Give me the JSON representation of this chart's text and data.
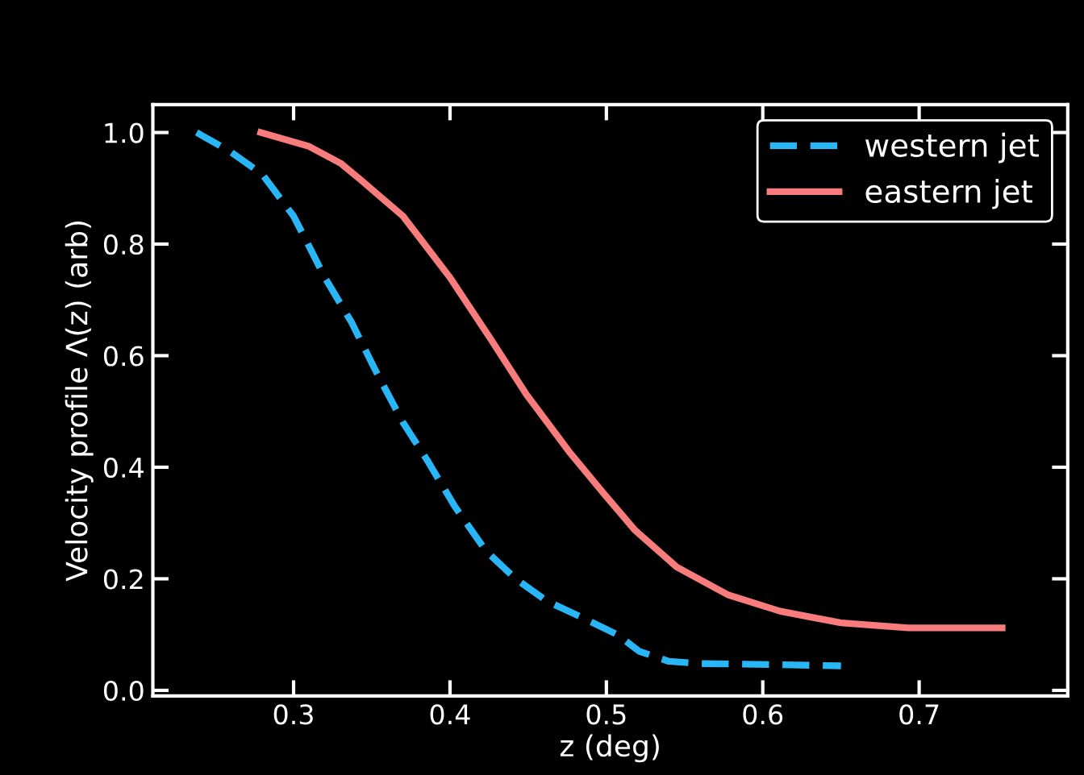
{
  "chart_data": {
    "type": "line",
    "xlabel": "z (deg)",
    "ylabel": "Velocity profile Λ(z) (arb)",
    "xlim": [
      0.21,
      0.795
    ],
    "ylim": [
      -0.01,
      1.05
    ],
    "xticks": [
      0.3,
      0.4,
      0.5,
      0.6,
      0.7
    ],
    "yticks": [
      {
        "value": 0,
        "label": "0.0"
      },
      0.2,
      0.4,
      0.6,
      0.8,
      {
        "value": 1,
        "label": "1.0"
      }
    ],
    "grid": false,
    "legend": "top right",
    "series": [
      {
        "name": "western jet",
        "color": "#29b6f6",
        "line_style": "dashed",
        "x": [
          0.238,
          0.26,
          0.28,
          0.3,
          0.311,
          0.32,
          0.337,
          0.353,
          0.37,
          0.386,
          0.403,
          0.423,
          0.442,
          0.462,
          0.485,
          0.507,
          0.521,
          0.54,
          0.561,
          0.611,
          0.65
        ],
        "values": [
          1.0,
          0.965,
          0.925,
          0.85,
          0.79,
          0.74,
          0.66,
          0.57,
          0.48,
          0.41,
          0.33,
          0.25,
          0.2,
          0.16,
          0.13,
          0.1,
          0.07,
          0.052,
          0.048,
          0.046,
          0.044
        ]
      },
      {
        "name": "eastern jet",
        "color": "#f87c7c",
        "line_style": "solid",
        "x": [
          0.279,
          0.31,
          0.33,
          0.343,
          0.37,
          0.4,
          0.426,
          0.449,
          0.477,
          0.498,
          0.518,
          0.545,
          0.578,
          0.611,
          0.65,
          0.693,
          0.753
        ],
        "values": [
          1.0,
          0.975,
          0.945,
          0.915,
          0.85,
          0.74,
          0.63,
          0.53,
          0.425,
          0.354,
          0.288,
          0.221,
          0.171,
          0.142,
          0.121,
          0.112,
          0.112
        ]
      }
    ]
  }
}
